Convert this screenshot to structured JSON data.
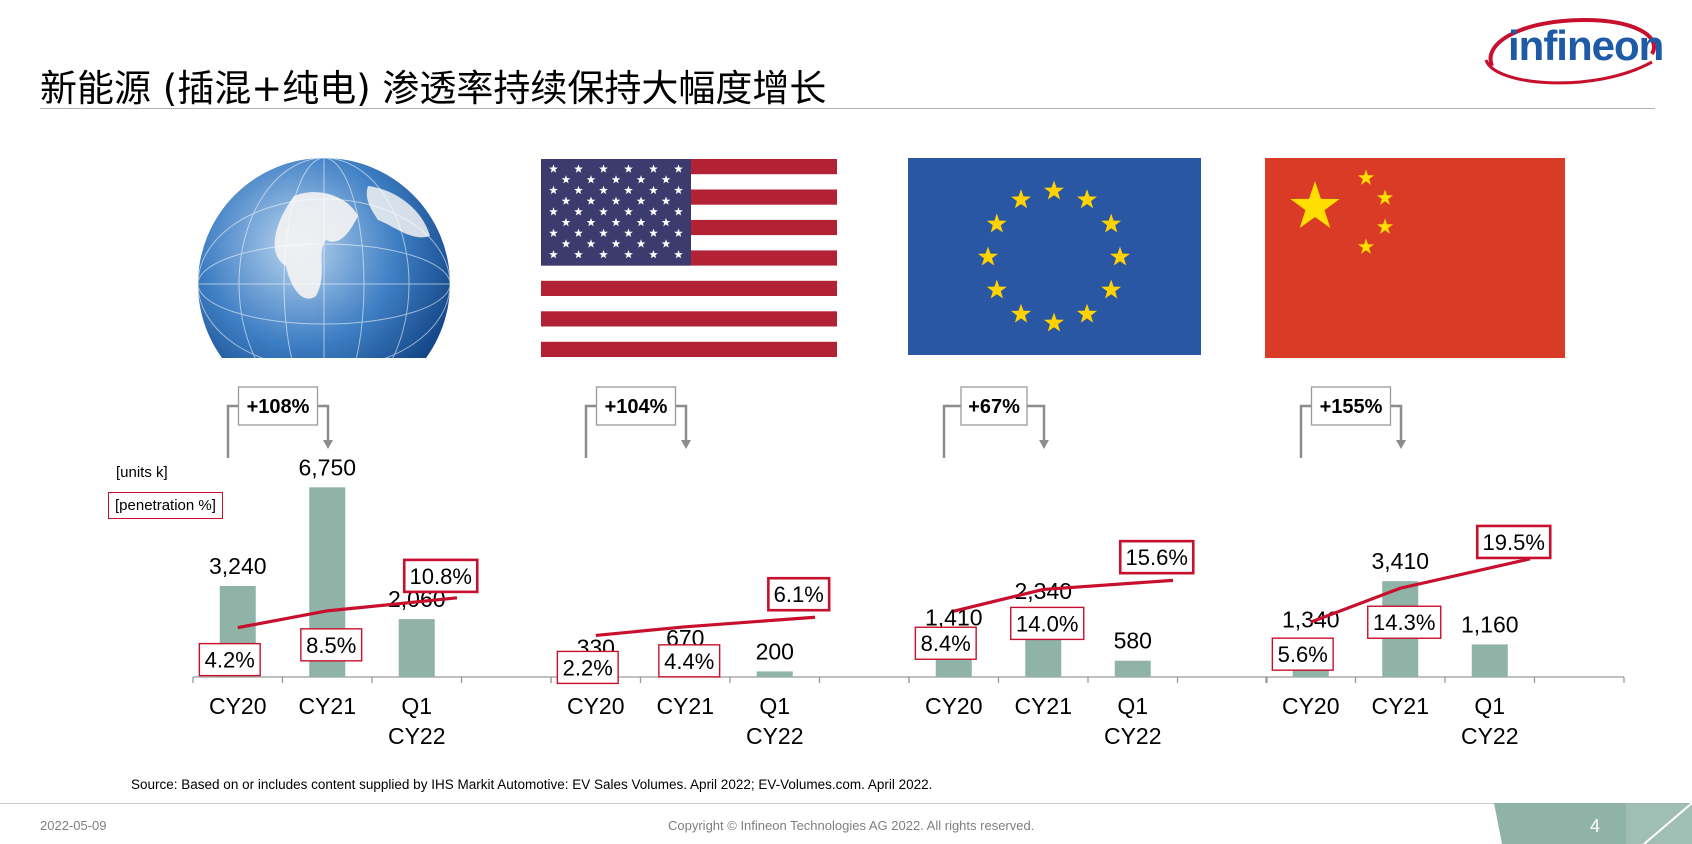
{
  "slide": {
    "title": "新能源 (插混+纯电) 渗透率持续保持大幅度增长",
    "logo_text": "infineon",
    "units_label": "[units k]",
    "penetration_label": "[penetration %]",
    "source": "Source: Based on or includes content supplied by IHS Markit Automotive: EV Sales Volumes. April 2022; EV-Volumes.com. April 2022.",
    "date": "2022-05-09",
    "copyright": "Copyright © Infineon Technologies AG 2022. All rights reserved.",
    "page_number": "4"
  },
  "colors": {
    "bar": "#8fb3a7",
    "line": "#c8102e",
    "growth_arrow": "#8c8c8c",
    "brand_blue": "#1f5aa6",
    "footer_triangle": "#8fb3a7"
  },
  "flags": [
    {
      "name": "globe-image"
    },
    {
      "name": "usa-flag"
    },
    {
      "name": "eu-flag"
    },
    {
      "name": "china-flag"
    }
  ],
  "chart_data": [
    {
      "type": "bar",
      "region_icon": "globe",
      "categories": [
        "CY20",
        "CY21",
        "Q1\nCY22"
      ],
      "values": [
        3240,
        6750,
        2060
      ],
      "value_labels": [
        "3,240",
        "6,750",
        "2,060"
      ],
      "penetration": [
        4.2,
        8.5,
        10.8
      ],
      "penetration_labels": [
        "4.2%",
        "8.5%",
        "10.8%"
      ],
      "growth_label": "+108%"
    },
    {
      "type": "bar",
      "region_icon": "usa-flag",
      "categories": [
        "CY20",
        "CY21",
        "Q1\nCY22"
      ],
      "values": [
        330,
        670,
        200
      ],
      "value_labels": [
        "330",
        "670",
        "200"
      ],
      "penetration": [
        2.2,
        4.4,
        6.1
      ],
      "penetration_labels": [
        "2.2%",
        "4.4%",
        "6.1%"
      ],
      "growth_label": "+104%"
    },
    {
      "type": "bar",
      "region_icon": "eu-flag",
      "categories": [
        "CY20",
        "CY21",
        "Q1\nCY22"
      ],
      "values": [
        1410,
        2340,
        580
      ],
      "value_labels": [
        "1,410",
        "2,340",
        "580"
      ],
      "penetration": [
        8.4,
        14.0,
        15.6
      ],
      "penetration_labels": [
        "8.4%",
        "14.0%",
        "15.6%"
      ],
      "growth_label": "+67%"
    },
    {
      "type": "bar",
      "region_icon": "china-flag",
      "categories": [
        "CY20",
        "CY21",
        "Q1\nCY22"
      ],
      "values": [
        1340,
        3410,
        1160
      ],
      "value_labels": [
        "1,340",
        "3,410",
        "1,160"
      ],
      "penetration": [
        5.6,
        14.3,
        19.5
      ],
      "penetration_labels": [
        "5.6%",
        "14.3%",
        "19.5%"
      ],
      "growth_label": "+155%"
    }
  ]
}
